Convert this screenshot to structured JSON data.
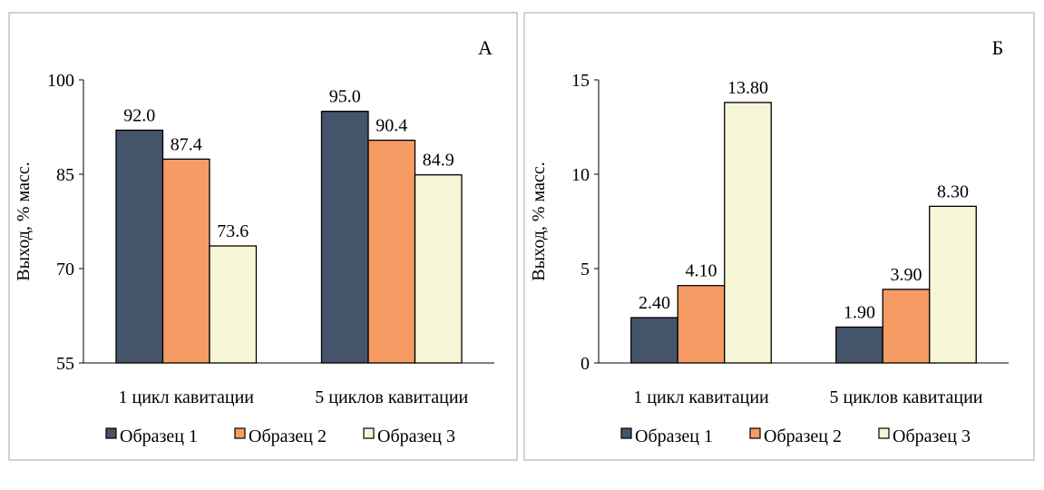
{
  "colors": {
    "series1": "#44546A",
    "series2": "#F79B64",
    "series3": "#F6F6D6"
  },
  "chart_data": [
    {
      "type": "bar",
      "panel_label": "А",
      "categories": [
        "1 цикл кавитации",
        "5 циклов кавитации"
      ],
      "series": [
        {
          "name": "Образец 1",
          "values": [
            92.0,
            95.0
          ],
          "labels": [
            "92.0",
            "95.0"
          ]
        },
        {
          "name": "Образец 2",
          "values": [
            87.4,
            90.4
          ],
          "labels": [
            "87.4",
            "90.4"
          ]
        },
        {
          "name": "Образец 3",
          "values": [
            73.6,
            84.9
          ],
          "labels": [
            "73.6",
            "84.9"
          ]
        }
      ],
      "ylabel": "Выход, % масс.",
      "ylim": [
        55,
        100
      ],
      "yticks": [
        "55",
        "70",
        "85",
        "100"
      ],
      "ytick_values": [
        55,
        70,
        85,
        100
      ],
      "legend": "bottom",
      "grid": false
    },
    {
      "type": "bar",
      "panel_label": "Б",
      "categories": [
        "1 цикл кавитации",
        "5 циклов кавитации"
      ],
      "series": [
        {
          "name": "Образец 1",
          "values": [
            2.4,
            1.9
          ],
          "labels": [
            "2.40",
            "1.90"
          ]
        },
        {
          "name": "Образец 2",
          "values": [
            4.1,
            3.9
          ],
          "labels": [
            "4.10",
            "3.90"
          ]
        },
        {
          "name": "Образец 3",
          "values": [
            13.8,
            8.3
          ],
          "labels": [
            "13.80",
            "8.30"
          ]
        }
      ],
      "ylabel": "Выход, % масс.",
      "ylim": [
        0,
        15
      ],
      "yticks": [
        "0",
        "5",
        "10",
        "15"
      ],
      "ytick_values": [
        0,
        5,
        10,
        15
      ],
      "legend": "bottom",
      "grid": false
    }
  ]
}
